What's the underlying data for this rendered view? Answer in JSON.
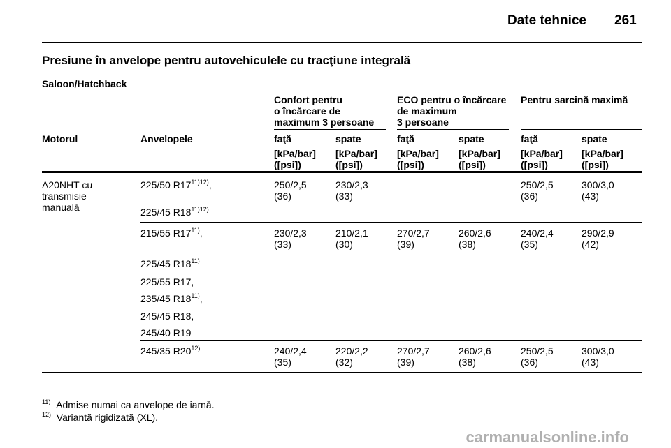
{
  "header": {
    "title": "Date tehnice",
    "page_number": "261"
  },
  "section_title": "Presiune în anvelope pentru autovehiculele cu tracţiune integrală",
  "subsection": "Saloon/Hatchback",
  "groups": [
    "Confort pentru\no încărcare de\nmaximum 3 persoane",
    "ECO pentru o încărcare\nde maximum\n3 persoane",
    "Pentru sarcină maximă"
  ],
  "columns": {
    "motor": "Motorul",
    "tyres": "Anvelopele",
    "front1": "faţă",
    "rear1": "spate",
    "front2": "faţă",
    "rear2": "spate",
    "front3": "faţă",
    "rear3": "spate"
  },
  "unit": "[kPa/bar]\n([psi])",
  "engine": "A20NHT cu\ntransmisie\nmanuală",
  "rows": [
    {
      "tyres": [
        {
          "text": "225/50 R17",
          "sup": "11)12)",
          "suffix": ","
        },
        {
          "text": "225/45 R18",
          "sup": "11)12)",
          "suffix": ""
        }
      ],
      "values": [
        "250/2,5\n(36)",
        "230/2,3\n(33)",
        "–",
        "–",
        "250/2,5\n(36)",
        "300/3,0\n(43)"
      ]
    },
    {
      "tyres": [
        {
          "text": "215/55 R17",
          "sup": "11)",
          "suffix": ","
        },
        {
          "text": "225/45 R18",
          "sup": "11)",
          "suffix": ""
        },
        {
          "text": "225/55 R17,",
          "sup": "",
          "suffix": ""
        },
        {
          "text": "235/45 R18",
          "sup": "11)",
          "suffix": ","
        },
        {
          "text": "245/45 R18,",
          "sup": "",
          "suffix": ""
        },
        {
          "text": "245/40 R19",
          "sup": "",
          "suffix": ""
        }
      ],
      "values": [
        "230/2,3\n(33)",
        "210/2,1\n(30)",
        "270/2,7\n(39)",
        "260/2,6\n(38)",
        "240/2,4\n(35)",
        "290/2,9\n(42)"
      ]
    },
    {
      "tyres": [
        {
          "text": "245/35 R20",
          "sup": "12)",
          "suffix": ""
        }
      ],
      "values": [
        "240/2,4\n(35)",
        "220/2,2\n(32)",
        "270/2,7\n(39)",
        "260/2,6\n(38)",
        "250/2,5\n(36)",
        "300/3,0\n(43)"
      ]
    }
  ],
  "footnotes": [
    {
      "mark": "11)",
      "text": "Admise numai ca anvelope de iarnă."
    },
    {
      "mark": "12)",
      "text": "Variantă rigidizată (XL)."
    }
  ],
  "watermark": "carmanualsonline.info"
}
